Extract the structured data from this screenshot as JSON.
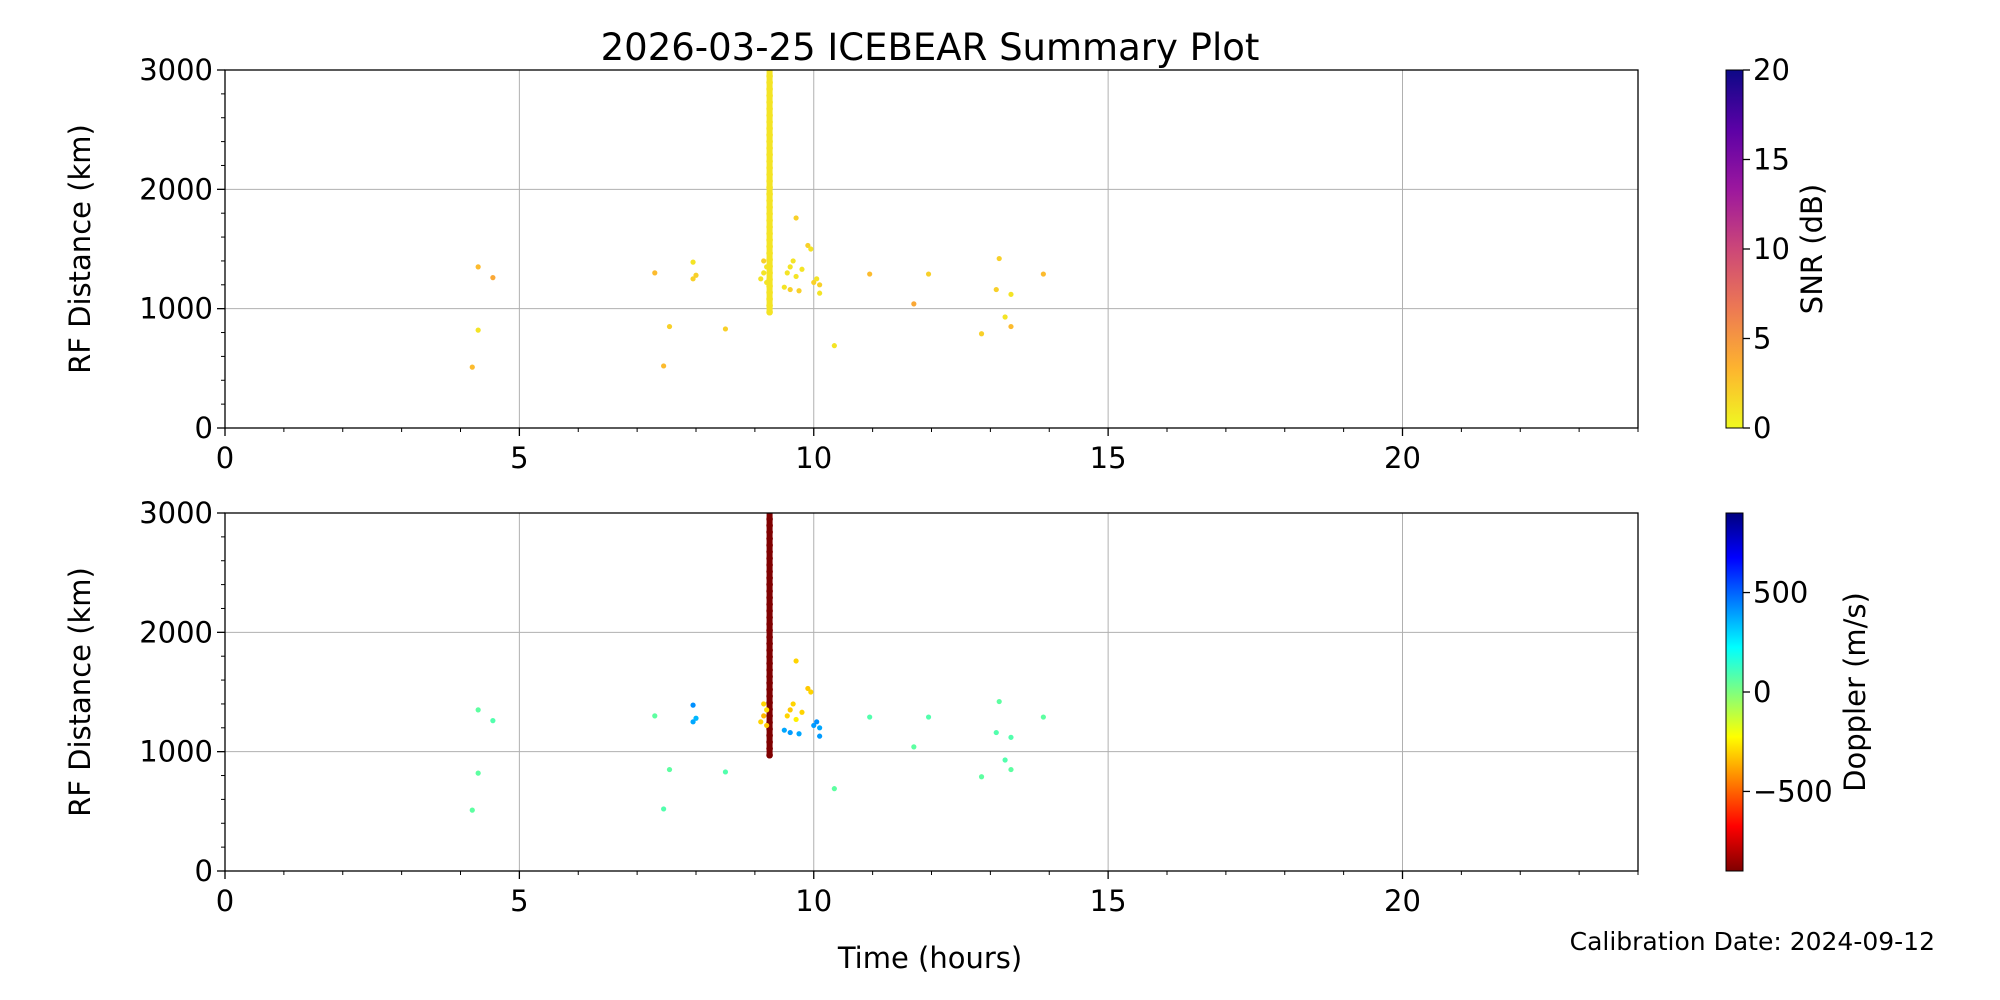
{
  "figure": {
    "title": "2026-03-25 ICEBEAR Summary Plot",
    "calibration_note": "Calibration Date: 2024-09-12",
    "shared_xlabel": "Time (hours)"
  },
  "chart_data": [
    {
      "type": "scatter",
      "panel": "top",
      "xlabel": "",
      "ylabel": "RF Distance (km)",
      "xlim": [
        0,
        24
      ],
      "ylim": [
        0,
        3000
      ],
      "xticks": [
        0,
        5,
        10,
        15,
        20
      ],
      "yticks": [
        0,
        1000,
        2000,
        3000
      ],
      "grid": true,
      "colorbar": {
        "label": "SNR (dB)",
        "range": [
          0,
          20
        ],
        "ticks": [
          0,
          5,
          10,
          15,
          20
        ],
        "colormap": "plasma_r",
        "stops": [
          "#f0f921",
          "#fdb42f",
          "#ed7953",
          "#cc4778",
          "#9c179e",
          "#5c01a6",
          "#0d0887"
        ]
      },
      "points": [
        [
          4.2,
          510,
          3
        ],
        [
          4.3,
          820,
          1
        ],
        [
          4.3,
          1350,
          3
        ],
        [
          4.55,
          1260,
          4
        ],
        [
          7.3,
          1300,
          3
        ],
        [
          7.45,
          520,
          3
        ],
        [
          7.55,
          850,
          2
        ],
        [
          7.95,
          1250,
          2
        ],
        [
          7.95,
          1390,
          1
        ],
        [
          8.0,
          1280,
          2
        ],
        [
          8.5,
          830,
          2
        ],
        [
          9.15,
          1400,
          2
        ],
        [
          9.15,
          1300,
          1
        ],
        [
          9.2,
          1220,
          1
        ],
        [
          9.1,
          1250,
          1
        ],
        [
          9.2,
          1350,
          1
        ],
        [
          9.5,
          1180,
          1
        ],
        [
          9.55,
          1300,
          1
        ],
        [
          9.6,
          1350,
          1
        ],
        [
          9.6,
          1160,
          2
        ],
        [
          9.65,
          1400,
          1
        ],
        [
          9.7,
          1270,
          1
        ],
        [
          9.7,
          1760,
          2
        ],
        [
          9.75,
          1150,
          2
        ],
        [
          9.8,
          1330,
          1
        ],
        [
          9.9,
          1530,
          2
        ],
        [
          9.95,
          1500,
          1
        ],
        [
          10.0,
          1220,
          2
        ],
        [
          10.05,
          1250,
          1
        ],
        [
          10.1,
          1200,
          2
        ],
        [
          10.1,
          1130,
          1
        ],
        [
          10.35,
          690,
          1
        ],
        [
          10.95,
          1290,
          3
        ],
        [
          11.7,
          1040,
          4
        ],
        [
          11.95,
          1290,
          2
        ],
        [
          12.85,
          790,
          2
        ],
        [
          13.1,
          1160,
          2
        ],
        [
          13.15,
          1420,
          2
        ],
        [
          13.25,
          930,
          1
        ],
        [
          13.35,
          850,
          3
        ],
        [
          13.35,
          1120,
          1
        ],
        [
          13.9,
          1290,
          3
        ]
      ],
      "streak": {
        "x": 9.25,
        "y_from": 970,
        "y_to": 3000,
        "value": 1
      }
    },
    {
      "type": "scatter",
      "panel": "bottom",
      "xlabel": "Time (hours)",
      "ylabel": "RF Distance (km)",
      "xlim": [
        0,
        24
      ],
      "ylim": [
        0,
        3000
      ],
      "xticks": [
        0,
        5,
        10,
        15,
        20
      ],
      "yticks": [
        0,
        1000,
        2000,
        3000
      ],
      "grid": true,
      "colorbar": {
        "label": "Doppler (m/s)",
        "range": [
          -900,
          900
        ],
        "ticks": [
          -500,
          0,
          500
        ],
        "colormap": "jet_r",
        "stops": [
          "#7f0000",
          "#ff0000",
          "#ff7f00",
          "#ffff00",
          "#7fff7f",
          "#00ffff",
          "#007fff",
          "#0000ff",
          "#00007f"
        ]
      },
      "points": [
        [
          4.2,
          510,
          60
        ],
        [
          4.3,
          820,
          60
        ],
        [
          4.3,
          1350,
          60
        ],
        [
          4.55,
          1260,
          80
        ],
        [
          7.3,
          1300,
          60
        ],
        [
          7.45,
          520,
          80
        ],
        [
          7.55,
          850,
          60
        ],
        [
          7.95,
          1250,
          380
        ],
        [
          7.95,
          1390,
          420
        ],
        [
          8.0,
          1280,
          350
        ],
        [
          8.5,
          830,
          80
        ],
        [
          9.15,
          1400,
          -300
        ],
        [
          9.15,
          1300,
          -350
        ],
        [
          9.2,
          1220,
          -320
        ],
        [
          9.1,
          1250,
          -300
        ],
        [
          9.2,
          1350,
          -280
        ],
        [
          9.5,
          1180,
          380
        ],
        [
          9.55,
          1300,
          -300
        ],
        [
          9.6,
          1350,
          -320
        ],
        [
          9.6,
          1160,
          400
        ],
        [
          9.65,
          1400,
          -300
        ],
        [
          9.7,
          1270,
          -250
        ],
        [
          9.7,
          1760,
          -300
        ],
        [
          9.75,
          1150,
          380
        ],
        [
          9.8,
          1330,
          -300
        ],
        [
          9.9,
          1530,
          -320
        ],
        [
          9.95,
          1500,
          -300
        ],
        [
          10.0,
          1220,
          400
        ],
        [
          10.05,
          1250,
          420
        ],
        [
          10.1,
          1200,
          380
        ],
        [
          10.1,
          1130,
          400
        ],
        [
          10.35,
          690,
          60
        ],
        [
          10.95,
          1290,
          80
        ],
        [
          11.7,
          1040,
          60
        ],
        [
          11.95,
          1290,
          80
        ],
        [
          12.85,
          790,
          60
        ],
        [
          13.1,
          1160,
          80
        ],
        [
          13.15,
          1420,
          60
        ],
        [
          13.25,
          930,
          80
        ],
        [
          13.35,
          850,
          60
        ],
        [
          13.35,
          1120,
          80
        ],
        [
          13.9,
          1290,
          60
        ]
      ],
      "streak": {
        "x": 9.25,
        "y_from": 970,
        "y_to": 3000,
        "value": -900
      }
    }
  ]
}
